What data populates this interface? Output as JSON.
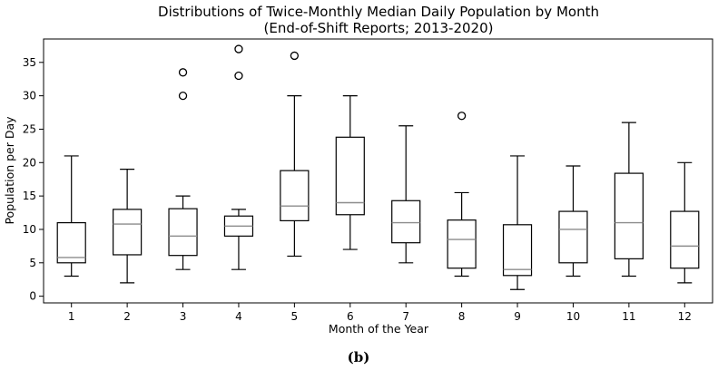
{
  "chart_data": {
    "type": "boxplot",
    "title_line1": "Distributions of Twice-Monthly Median Daily Population by Month",
    "title_line2": "(End-of-Shift Reports; 2013-2020)",
    "xlabel": "Month of the Year",
    "ylabel": "Population per Day",
    "ylim": [
      -1,
      38.5
    ],
    "yticks": [
      0,
      5,
      10,
      15,
      20,
      25,
      30,
      35
    ],
    "categories": [
      "1",
      "2",
      "3",
      "4",
      "5",
      "6",
      "7",
      "8",
      "9",
      "10",
      "11",
      "12"
    ],
    "boxes": [
      {
        "label": "1",
        "whislo": 3,
        "q1": 5,
        "med": 5.8,
        "q3": 11,
        "whishi": 21,
        "fliers": []
      },
      {
        "label": "2",
        "whislo": 2,
        "q1": 6.2,
        "med": 10.8,
        "q3": 13,
        "whishi": 19,
        "fliers": []
      },
      {
        "label": "3",
        "whislo": 4,
        "q1": 6.1,
        "med": 9,
        "q3": 13.1,
        "whishi": 15,
        "fliers": [
          30,
          33.5
        ]
      },
      {
        "label": "4",
        "whislo": 4,
        "q1": 9,
        "med": 10.5,
        "q3": 12,
        "whishi": 13,
        "fliers": [
          33,
          37
        ]
      },
      {
        "label": "5",
        "whislo": 6,
        "q1": 11.3,
        "med": 13.5,
        "q3": 18.8,
        "whishi": 30,
        "fliers": [
          36
        ]
      },
      {
        "label": "6",
        "whislo": 7,
        "q1": 12.2,
        "med": 14,
        "q3": 23.8,
        "whishi": 30,
        "fliers": []
      },
      {
        "label": "7",
        "whislo": 5,
        "q1": 8,
        "med": 11,
        "q3": 14.3,
        "whishi": 25.5,
        "fliers": []
      },
      {
        "label": "8",
        "whislo": 3,
        "q1": 4.2,
        "med": 8.5,
        "q3": 11.4,
        "whishi": 15.5,
        "fliers": [
          27
        ]
      },
      {
        "label": "9",
        "whislo": 1,
        "q1": 3.1,
        "med": 4,
        "q3": 10.7,
        "whishi": 21,
        "fliers": []
      },
      {
        "label": "10",
        "whislo": 3,
        "q1": 5,
        "med": 10,
        "q3": 12.7,
        "whishi": 19.5,
        "fliers": []
      },
      {
        "label": "11",
        "whislo": 3,
        "q1": 5.6,
        "med": 11,
        "q3": 18.4,
        "whishi": 26,
        "fliers": []
      },
      {
        "label": "12",
        "whislo": 2,
        "q1": 4.2,
        "med": 7.5,
        "q3": 12.7,
        "whishi": 20,
        "fliers": []
      }
    ]
  },
  "caption": "(b)",
  "colors": {
    "box": "#000000",
    "median": "#8c8c8c",
    "background": "#ffffff"
  }
}
